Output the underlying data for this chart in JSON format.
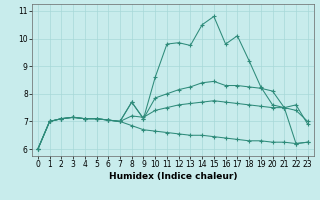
{
  "xlabel": "Humidex (Indice chaleur)",
  "x": [
    0,
    1,
    2,
    3,
    4,
    5,
    6,
    7,
    8,
    9,
    10,
    11,
    12,
    13,
    14,
    15,
    16,
    17,
    18,
    19,
    20,
    21,
    22,
    23
  ],
  "line1": [
    6.0,
    7.0,
    7.1,
    7.15,
    7.1,
    7.1,
    7.05,
    7.0,
    7.7,
    7.1,
    8.6,
    9.8,
    9.85,
    9.75,
    10.5,
    10.8,
    9.8,
    10.1,
    9.2,
    8.25,
    7.6,
    7.5,
    6.2,
    6.25
  ],
  "line2": [
    6.0,
    7.0,
    7.1,
    7.15,
    7.1,
    7.1,
    7.05,
    7.0,
    7.7,
    7.1,
    7.85,
    8.0,
    8.15,
    8.25,
    8.4,
    8.45,
    8.3,
    8.3,
    8.25,
    8.2,
    8.1,
    7.5,
    7.6,
    6.9
  ],
  "line3": [
    6.0,
    7.0,
    7.1,
    7.15,
    7.1,
    7.1,
    7.05,
    7.0,
    7.2,
    7.15,
    7.4,
    7.5,
    7.6,
    7.65,
    7.7,
    7.75,
    7.7,
    7.65,
    7.6,
    7.55,
    7.5,
    7.5,
    7.4,
    7.0
  ],
  "line4": [
    6.0,
    7.0,
    7.1,
    7.15,
    7.1,
    7.1,
    7.05,
    7.0,
    6.85,
    6.7,
    6.65,
    6.6,
    6.55,
    6.5,
    6.5,
    6.45,
    6.4,
    6.35,
    6.3,
    6.3,
    6.25,
    6.25,
    6.2,
    6.25
  ],
  "color": "#2e8b7a",
  "bg_color": "#c8ecec",
  "grid_color": "#a8d8d8",
  "ylim": [
    5.75,
    11.25
  ],
  "yticks": [
    6,
    7,
    8,
    9,
    10,
    11
  ],
  "xlim": [
    -0.5,
    23.5
  ],
  "marker": "+",
  "markersize": 3,
  "linewidth": 0.75,
  "tick_fontsize": 5.5,
  "xlabel_fontsize": 6.5
}
